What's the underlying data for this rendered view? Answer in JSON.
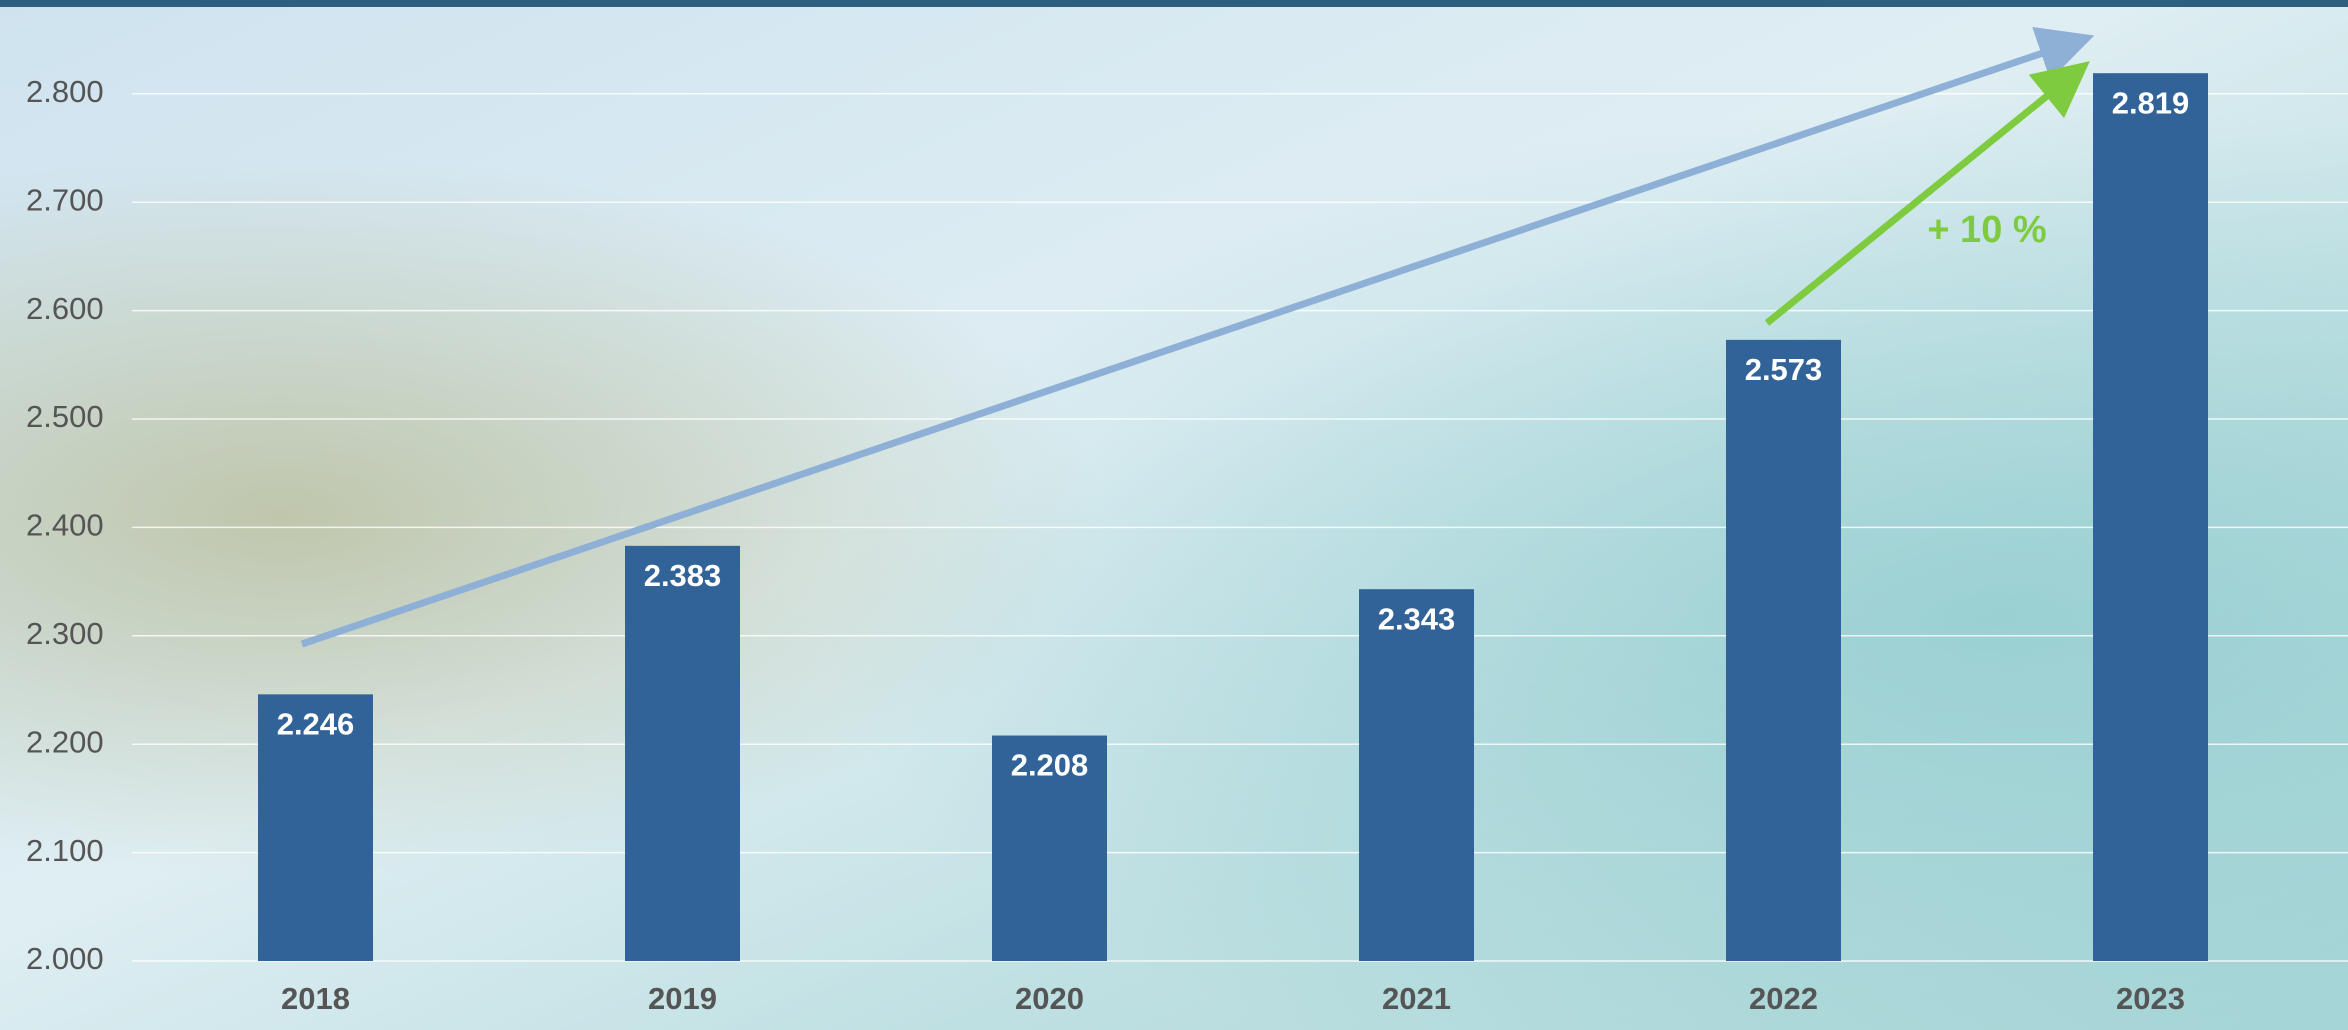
{
  "chart_data": {
    "type": "bar",
    "categories": [
      "2018",
      "2019",
      "2020",
      "2021",
      "2022",
      "2023"
    ],
    "values": [
      2246,
      2383,
      2208,
      2343,
      2573,
      2819
    ],
    "value_labels": [
      "2.246",
      "2.383",
      "2.208",
      "2.343",
      "2.573",
      "2.819"
    ],
    "color": "#316399",
    "ylim": [
      2000,
      2875
    ],
    "yticks": [
      {
        "value": 2000,
        "label": "2.000"
      },
      {
        "value": 2100,
        "label": "2.100"
      },
      {
        "value": 2200,
        "label": "2.200"
      },
      {
        "value": 2300,
        "label": "2.300"
      },
      {
        "value": 2400,
        "label": "2.400"
      },
      {
        "value": 2500,
        "label": "2.500"
      },
      {
        "value": 2600,
        "label": "2.600"
      },
      {
        "value": 2700,
        "label": "2.700"
      },
      {
        "value": 2800,
        "label": "2.800"
      }
    ],
    "grid": true,
    "annotation": "+ 10 %"
  }
}
